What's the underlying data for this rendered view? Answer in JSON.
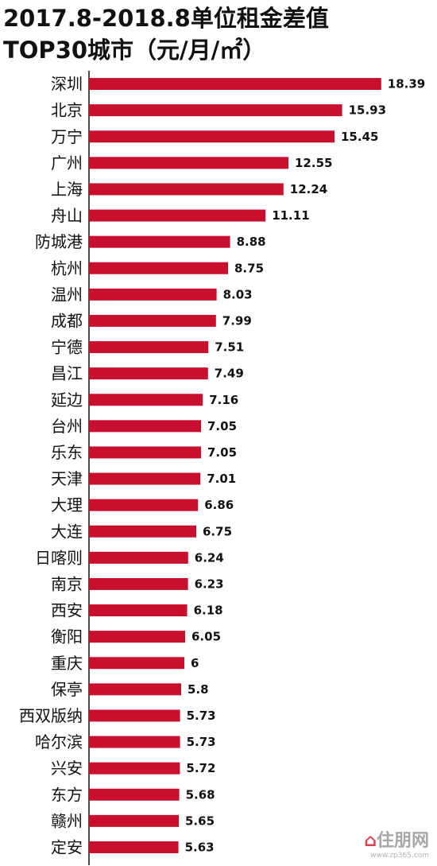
{
  "chart_data": {
    "type": "bar",
    "orientation": "horizontal",
    "title": "2017.8-2018.8单位租金差值",
    "subtitle": "TOP30城市（元/月/㎡）",
    "xlabel": "",
    "ylabel": "",
    "xlim": [
      0,
      20
    ],
    "grid": false,
    "legend": "none",
    "bar_color": "#c8102e",
    "categories": [
      "深圳",
      "北京",
      "万宁",
      "广州",
      "上海",
      "舟山",
      "防城港",
      "杭州",
      "温州",
      "成都",
      "宁德",
      "昌江",
      "延边",
      "台州",
      "乐东",
      "天津",
      "大理",
      "大连",
      "日喀则",
      "南京",
      "西安",
      "衡阳",
      "重庆",
      "保亭",
      "西双版纳",
      "哈尔滨",
      "兴安",
      "东方",
      "赣州",
      "定安"
    ],
    "values": [
      18.39,
      15.93,
      15.45,
      12.55,
      12.24,
      11.11,
      8.88,
      8.75,
      8.03,
      7.99,
      7.51,
      7.49,
      7.16,
      7.05,
      7.05,
      7.01,
      6.86,
      6.75,
      6.24,
      6.23,
      6.18,
      6.05,
      6,
      5.8,
      5.73,
      5.73,
      5.72,
      5.68,
      5.65,
      5.63
    ],
    "value_labels": [
      "18.39",
      "15.93",
      "15.45",
      "12.55",
      "12.24",
      "11.11",
      "8.88",
      "8.75",
      "8.03",
      "7.99",
      "7.51",
      "7.49",
      "7.16",
      "7.05",
      "7.05",
      "7.01",
      "6.86",
      "6.75",
      "6.24",
      "6.23",
      "6.18",
      "6.05",
      "6",
      "5.8",
      "5.73",
      "5.73",
      "5.72",
      "5.68",
      "5.65",
      "5.63"
    ]
  },
  "watermark": {
    "logo": "住朋网",
    "site": "www.zp365.com"
  }
}
